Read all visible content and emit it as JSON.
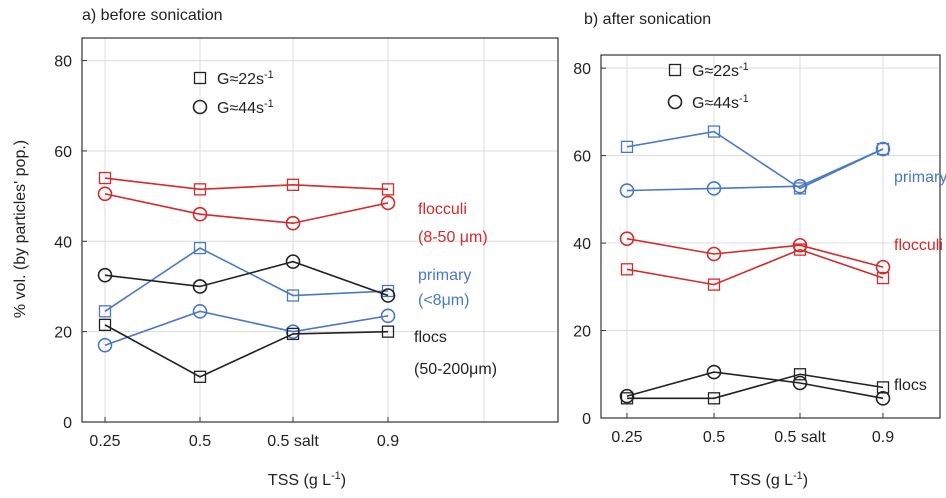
{
  "chart_data": [
    {
      "type": "line",
      "title": "a) before sonication",
      "xlabel": "TSS (g L",
      "xlabel_sup": "-1",
      "xlabel_close": ")",
      "ylabel": "% vol. (by particles' pop.)",
      "categories": [
        "0.25",
        "0.5",
        "0.5 salt",
        "0.9"
      ],
      "ylim": [
        0,
        85
      ],
      "yticks": [
        0,
        20,
        40,
        60,
        80
      ],
      "grid": true,
      "legend": {
        "position": "top-center",
        "entries": [
          {
            "marker": "square",
            "label": "G≈22s",
            "sup": "-1"
          },
          {
            "marker": "circle",
            "label": "G≈44s",
            "sup": "-1"
          }
        ]
      },
      "series": [
        {
          "group": "flocculi",
          "marker": "square",
          "color": "#d42a2a",
          "values": [
            54,
            51.5,
            52.5,
            51.5
          ]
        },
        {
          "group": "flocculi",
          "marker": "circle",
          "color": "#d42a2a",
          "values": [
            50.5,
            46,
            44,
            48.5
          ]
        },
        {
          "group": "primary",
          "marker": "square",
          "color": "#4a78c4",
          "values": [
            24.5,
            38.5,
            28,
            29
          ]
        },
        {
          "group": "primary",
          "marker": "circle",
          "color": "#4a78c4",
          "values": [
            17,
            24.5,
            20,
            23.5
          ]
        },
        {
          "group": "flocs",
          "marker": "square",
          "color": "#222222",
          "values": [
            21.5,
            10,
            19.5,
            20
          ]
        },
        {
          "group": "flocs",
          "marker": "circle",
          "color": "#222222",
          "values": [
            32.5,
            30,
            35.5,
            28
          ]
        }
      ],
      "annotations": [
        {
          "lines": [
            "flocculi",
            "(8-50 μm)"
          ],
          "color": "#d42a2a"
        },
        {
          "lines": [
            "primary",
            "(<8μm)"
          ],
          "color": "#4a78c4"
        },
        {
          "lines": [
            "flocs",
            "(50-200μm)"
          ],
          "color": "#222222"
        }
      ]
    },
    {
      "type": "line",
      "title": "b) after sonication",
      "xlabel": "TSS (g L",
      "xlabel_sup": "-1",
      "xlabel_close": ")",
      "ylabel": "",
      "categories": [
        "0.25",
        "0.5",
        "0.5 salt",
        "0.9"
      ],
      "ylim": [
        0,
        83
      ],
      "yticks": [
        0,
        20,
        40,
        60,
        80
      ],
      "grid": true,
      "legend": {
        "position": "top-center",
        "entries": [
          {
            "marker": "square",
            "label": "G≈22s",
            "sup": "-1"
          },
          {
            "marker": "circle",
            "label": "G≈44s",
            "sup": "-1"
          }
        ]
      },
      "series": [
        {
          "group": "primary",
          "marker": "square",
          "color": "#4a78c4",
          "values": [
            62,
            65.5,
            52.5,
            61.5
          ]
        },
        {
          "group": "primary",
          "marker": "circle",
          "color": "#4a78c4",
          "values": [
            52,
            52.5,
            53,
            61.5
          ]
        },
        {
          "group": "flocculi",
          "marker": "square",
          "color": "#d42a2a",
          "values": [
            34,
            30.5,
            38.5,
            32
          ]
        },
        {
          "group": "flocculi",
          "marker": "circle",
          "color": "#d42a2a",
          "values": [
            41,
            37.5,
            39.5,
            34.5
          ]
        },
        {
          "group": "flocs",
          "marker": "square",
          "color": "#222222",
          "values": [
            4.5,
            4.5,
            10,
            7
          ]
        },
        {
          "group": "flocs",
          "marker": "circle",
          "color": "#222222",
          "values": [
            5,
            10.5,
            8,
            4.5
          ]
        }
      ],
      "annotations": [
        {
          "lines": [
            "primary"
          ],
          "color": "#4a78c4"
        },
        {
          "lines": [
            "flocculi"
          ],
          "color": "#d42a2a"
        },
        {
          "lines": [
            "flocs"
          ],
          "color": "#222222"
        }
      ]
    }
  ]
}
